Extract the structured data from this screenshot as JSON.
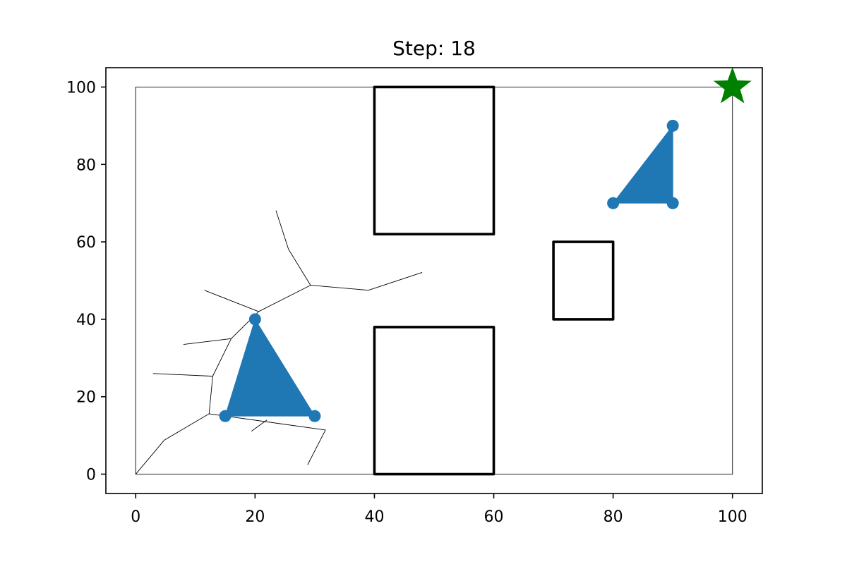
{
  "chart_data": {
    "type": "scatter",
    "title": "Step: 18",
    "xlabel": "",
    "ylabel": "",
    "xlim": [
      -5,
      105
    ],
    "ylim": [
      -5,
      105
    ],
    "xticks": [
      0,
      20,
      40,
      60,
      80,
      100
    ],
    "yticks": [
      0,
      20,
      40,
      60,
      80,
      100
    ],
    "grid": false,
    "boundary": [
      [
        0,
        0
      ],
      [
        100,
        0
      ],
      [
        100,
        100
      ],
      [
        0,
        100
      ]
    ],
    "obstacles": [
      [
        [
          40,
          62
        ],
        [
          60,
          62
        ],
        [
          60,
          100
        ],
        [
          40,
          100
        ]
      ],
      [
        [
          70,
          40
        ],
        [
          80,
          40
        ],
        [
          80,
          60
        ],
        [
          70,
          60
        ]
      ],
      [
        [
          40,
          0
        ],
        [
          60,
          0
        ],
        [
          60,
          38
        ],
        [
          40,
          38
        ]
      ]
    ],
    "tree_edges": [
      [
        [
          0,
          0
        ],
        [
          4.8,
          8.8
        ]
      ],
      [
        [
          4.8,
          8.8
        ],
        [
          12.3,
          15.6
        ]
      ],
      [
        [
          12.3,
          15.6
        ],
        [
          31.8,
          11.4
        ]
      ],
      [
        [
          31.8,
          11.4
        ],
        [
          28.8,
          2.4
        ]
      ],
      [
        [
          22.0,
          14.0
        ],
        [
          19.4,
          11.1
        ]
      ],
      [
        [
          12.3,
          15.6
        ],
        [
          12.9,
          25.3
        ]
      ],
      [
        [
          12.9,
          25.3
        ],
        [
          2.9,
          26.0
        ]
      ],
      [
        [
          12.9,
          25.3
        ],
        [
          16.0,
          35.0
        ]
      ],
      [
        [
          16.0,
          35.0
        ],
        [
          8.0,
          33.5
        ]
      ],
      [
        [
          16.0,
          35.0
        ],
        [
          20.6,
          42.0
        ]
      ],
      [
        [
          20.6,
          42.0
        ],
        [
          11.5,
          47.5
        ]
      ],
      [
        [
          20.6,
          42.0
        ],
        [
          29.3,
          48.8
        ]
      ],
      [
        [
          29.3,
          48.8
        ],
        [
          39.0,
          47.5
        ]
      ],
      [
        [
          39.0,
          47.5
        ],
        [
          48.0,
          52.1
        ]
      ],
      [
        [
          29.3,
          48.8
        ],
        [
          25.6,
          58.1
        ]
      ],
      [
        [
          25.6,
          58.1
        ],
        [
          23.5,
          68.1
        ]
      ]
    ],
    "robots": [
      {
        "vertices": [
          [
            20,
            40
          ],
          [
            15,
            15
          ],
          [
            30,
            15
          ]
        ],
        "color": "#1f77b4"
      },
      {
        "vertices": [
          [
            90,
            90
          ],
          [
            80,
            70
          ],
          [
            90,
            70
          ]
        ],
        "color": "#1f77b4"
      }
    ],
    "goal": {
      "x": 100,
      "y": 100,
      "marker": "star",
      "color": "#008000"
    }
  }
}
